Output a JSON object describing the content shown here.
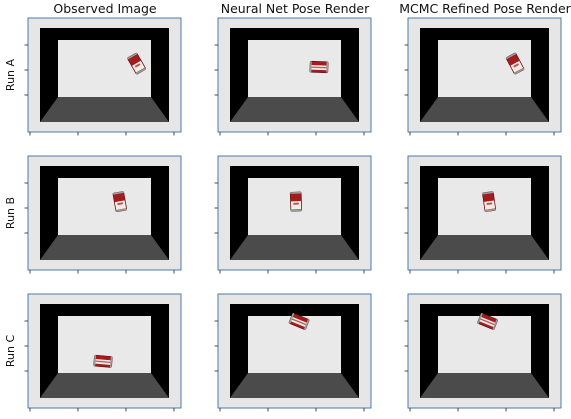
{
  "chart_data": {
    "type": "image-grid",
    "columns": [
      "Observed Image",
      "Neural Net Pose Render",
      "MCMC Refined Pose Render"
    ],
    "rows": [
      "Run A",
      "Run B",
      "Run C"
    ],
    "panels": [
      [
        {
          "can": {
            "x": 0.71,
            "y": 0.4,
            "angle": -30,
            "orientation": "upright"
          }
        },
        {
          "can": {
            "x": 0.66,
            "y": 0.43,
            "angle": 2,
            "orientation": "side"
          }
        },
        {
          "can": {
            "x": 0.7,
            "y": 0.4,
            "angle": -28,
            "orientation": "upright"
          }
        }
      ],
      [
        {
          "can": {
            "x": 0.6,
            "y": 0.4,
            "angle": -10,
            "orientation": "upright"
          }
        },
        {
          "can": {
            "x": 0.51,
            "y": 0.4,
            "angle": -2,
            "orientation": "upright"
          }
        },
        {
          "can": {
            "x": 0.53,
            "y": 0.4,
            "angle": -8,
            "orientation": "upright"
          }
        }
      ],
      [
        {
          "can": {
            "x": 0.49,
            "y": 0.59,
            "angle": 5,
            "orientation": "side"
          }
        },
        {
          "can": {
            "x": 0.53,
            "y": 0.24,
            "angle": 22,
            "orientation": "side"
          }
        },
        {
          "can": {
            "x": 0.52,
            "y": 0.24,
            "angle": 22,
            "orientation": "side"
          }
        }
      ]
    ],
    "scene_colors": {
      "frame_border": "#3d6e9f",
      "panel_bg": "#e6e6e6",
      "room_wall": "#000000",
      "room_back": "#e9e9e9",
      "room_floor": "#4b4b4b",
      "can_red": "#a31d1f",
      "can_white": "#f1ece6",
      "can_metal": "#9c9c9c"
    },
    "grid": false,
    "ticks": {
      "y_count": 3,
      "x_count": 4,
      "labels": false
    }
  }
}
